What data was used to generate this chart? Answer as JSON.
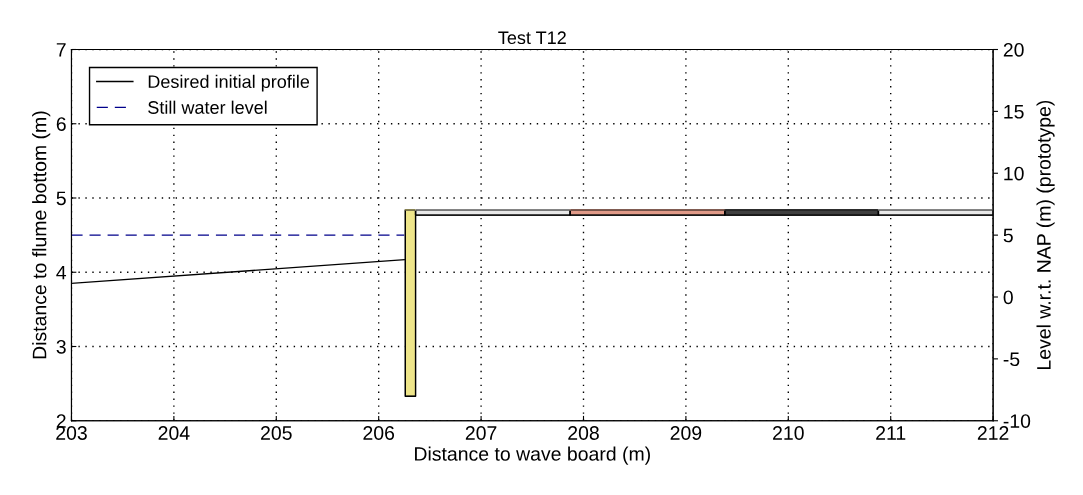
{
  "chart_data": {
    "type": "line",
    "title": "Test T12",
    "xlabel": "Distance to wave board (m)",
    "ylabel": "Distance to flume bottom (m)",
    "y2label": "Level w.r.t. NAP (m) (prototype)",
    "xlim": [
      203,
      212
    ],
    "xticks": [
      203,
      204,
      205,
      206,
      207,
      208,
      209,
      210,
      211,
      212
    ],
    "ylim": [
      2,
      7
    ],
    "yticks": [
      2,
      3,
      4,
      5,
      6,
      7
    ],
    "y2lim": [
      -10,
      20
    ],
    "y2ticks": [
      -10,
      -5,
      0,
      5,
      10,
      15,
      20
    ],
    "grid": true,
    "legend": "top left",
    "series": [
      {
        "name": "Desired initial profile",
        "color": "#000000",
        "line_style": "solid",
        "x": [
          203,
          206.25
        ],
        "values": [
          3.85,
          4.17
        ]
      },
      {
        "name": "Still water level",
        "color": "#00008b",
        "line_style": "dashed",
        "x": [
          203,
          206.25
        ],
        "values": [
          4.5,
          4.5
        ]
      },
      {
        "color": "#eee58a",
        "x": [
          206.26,
          206.36
        ],
        "values": [
          4.84,
          4.84
        ],
        "lower": [
          2.33,
          2.33
        ],
        "upper": [
          4.84,
          4.84
        ]
      },
      {
        "color": "#e8e8e8",
        "x": [
          206.36,
          207.87
        ],
        "values": [
          4.84,
          4.84
        ],
        "lower": [
          4.77,
          4.77
        ],
        "upper": [
          4.84,
          4.84
        ]
      },
      {
        "color": "#e09a88",
        "x": [
          207.87,
          209.38
        ],
        "values": [
          4.84,
          4.84
        ],
        "lower": [
          4.77,
          4.77
        ],
        "upper": [
          4.84,
          4.84
        ]
      },
      {
        "color": "#404040",
        "x": [
          209.38,
          210.88
        ],
        "values": [
          4.84,
          4.84
        ],
        "lower": [
          4.77,
          4.77
        ],
        "upper": [
          4.84,
          4.84
        ]
      },
      {
        "color": "#e8e8e8",
        "x": [
          210.88,
          212
        ],
        "values": [
          4.84,
          4.84
        ],
        "lower": [
          4.77,
          4.77
        ],
        "upper": [
          4.84,
          4.84
        ]
      }
    ]
  }
}
